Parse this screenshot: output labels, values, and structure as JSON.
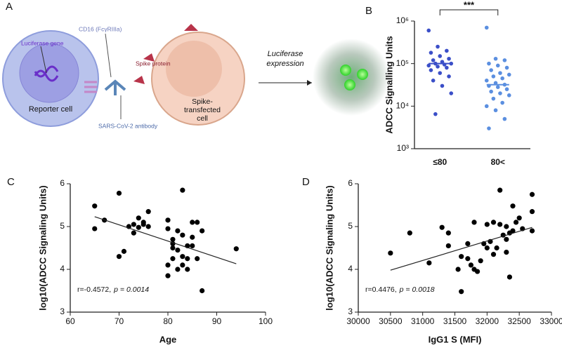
{
  "diagram": {
    "panel": "A",
    "luciferase_gene": "Luciferase gene",
    "cd16": "CD16 (FcγRIIIa)",
    "spike_protein": "Spike protein",
    "reporter_cell": "Reporter cell",
    "antibody": "SARS-CoV-2 antibody",
    "spike_cell": [
      "Spike-",
      "transfected",
      "cell"
    ],
    "arrow_label": [
      "Luciferase",
      "expression"
    ]
  },
  "chart_data": [
    {
      "type": "strip",
      "panel": "B",
      "ylabel": "ADCC Signalling Units",
      "categories": [
        "≤80",
        "80<"
      ],
      "log": true,
      "ylim": [
        1000,
        1000000
      ],
      "yticks": [
        {
          "value": 1000,
          "label": "10³"
        },
        {
          "value": 10000,
          "label": "10⁴"
        },
        {
          "value": 100000,
          "label": "10⁵"
        },
        {
          "value": 1000000,
          "label": "10⁶"
        }
      ],
      "annotation": "***",
      "groups": [
        {
          "color": "#3b4fc8",
          "median": 100000,
          "values": [
            600000,
            250000,
            200000,
            180000,
            150000,
            130000,
            120000,
            110000,
            100000,
            100000,
            95000,
            90000,
            85000,
            80000,
            70000,
            60000,
            50000,
            40000,
            30000,
            20000,
            6500
          ]
        },
        {
          "color": "#5b8fe0",
          "median": 32000,
          "values": [
            700000,
            130000,
            120000,
            100000,
            90000,
            80000,
            70000,
            60000,
            55000,
            50000,
            45000,
            40000,
            35000,
            32000,
            30000,
            28000,
            25000,
            22000,
            20000,
            18000,
            15000,
            12000,
            10000,
            8000,
            5000,
            3000
          ]
        }
      ]
    },
    {
      "type": "scatter",
      "panel": "C",
      "xlabel": "Age",
      "ylabel": "log10(ADCC Signaling Units)",
      "color": "#000000",
      "x": [
        65,
        65,
        67,
        70,
        70,
        71,
        72,
        73,
        73,
        74,
        74,
        75,
        75,
        76,
        76,
        80,
        80,
        80,
        80,
        81,
        81,
        81,
        81,
        82,
        82,
        82,
        83,
        83,
        83,
        83,
        84,
        84,
        84,
        85,
        85,
        85,
        86,
        86,
        87,
        87,
        94
      ],
      "y": [
        5.48,
        4.95,
        5.15,
        5.78,
        4.3,
        4.42,
        5.0,
        5.05,
        4.85,
        5.2,
        4.98,
        5.1,
        5.05,
        5.35,
        5.0,
        5.15,
        4.95,
        4.1,
        3.85,
        4.7,
        4.6,
        4.5,
        4.25,
        4.9,
        4.45,
        4.0,
        5.85,
        4.8,
        4.3,
        4.1,
        4.55,
        4.25,
        4.0,
        4.75,
        5.1,
        4.55,
        5.1,
        4.25,
        4.9,
        3.5,
        4.48
      ],
      "xlim": [
        60,
        100
      ],
      "xticks": [
        60,
        70,
        80,
        90,
        100
      ],
      "ylim": [
        3,
        6
      ],
      "yticks": [
        3,
        4,
        5,
        6
      ],
      "fit": {
        "x": [
          65,
          94
        ],
        "y": [
          5.23,
          4.13
        ]
      },
      "annotation": {
        "stat": "r=-0.4572,",
        "p": "p = 0.0014"
      }
    },
    {
      "type": "scatter",
      "panel": "D",
      "xlabel": "IgG1 S (MFI)",
      "ylabel": "log10(ADCC Signaling Units)",
      "color": "#000000",
      "x": [
        30500,
        30800,
        31100,
        31300,
        31400,
        31400,
        31550,
        31600,
        31600,
        31700,
        31700,
        31750,
        31800,
        31800,
        31850,
        31900,
        31950,
        32000,
        32000,
        32050,
        32100,
        32100,
        32150,
        32200,
        32200,
        32250,
        32300,
        32300,
        32300,
        32350,
        32350,
        32400,
        32400,
        32450,
        32500,
        32550,
        32700,
        32700,
        32700
      ],
      "y": [
        4.38,
        4.85,
        4.15,
        4.98,
        4.55,
        4.85,
        4.0,
        4.3,
        3.48,
        4.6,
        4.25,
        4.1,
        5.1,
        4.0,
        3.95,
        4.2,
        4.6,
        5.05,
        4.5,
        4.65,
        5.1,
        4.35,
        4.5,
        5.85,
        5.05,
        4.8,
        5.0,
        4.7,
        4.4,
        4.85,
        3.82,
        5.48,
        4.9,
        5.1,
        5.2,
        4.95,
        5.75,
        5.35,
        4.9
      ],
      "xlim": [
        30000,
        33000
      ],
      "xticks": [
        30000,
        30500,
        31000,
        31500,
        32000,
        32500,
        33000
      ],
      "ylim": [
        3,
        6
      ],
      "yticks": [
        3,
        4,
        5,
        6
      ],
      "fit": {
        "x": [
          30500,
          32700
        ],
        "y": [
          3.98,
          4.98
        ]
      },
      "annotation": {
        "stat": "r=0.4476,",
        "p": "p = 0.0018"
      }
    }
  ]
}
